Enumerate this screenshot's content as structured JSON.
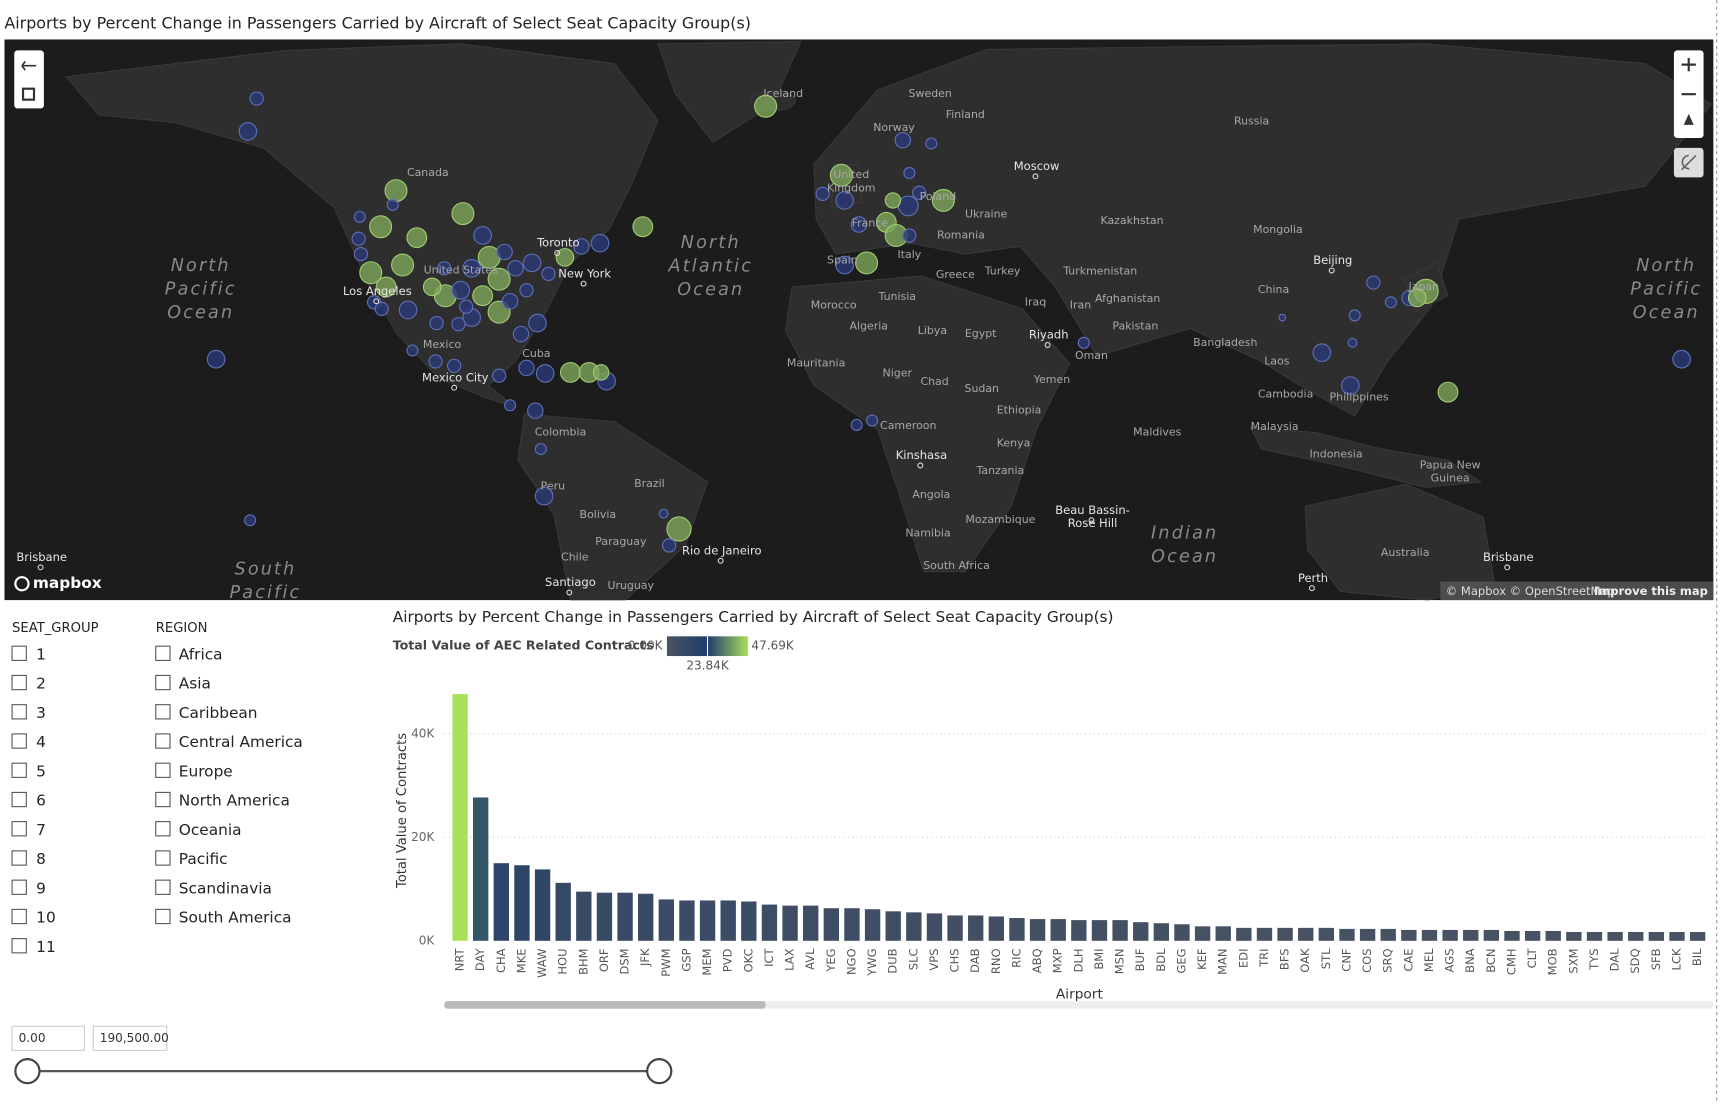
{
  "map": {
    "title": "Airports by Percent Change in Passengers Carried by Aircraft of Select Seat Capacity Group(s)",
    "labels": [
      [
        "Canada"
      ],
      [
        "Iceland"
      ],
      [
        "Sweden"
      ],
      [
        "Finland"
      ],
      [
        "Norway"
      ],
      [
        "Russia"
      ],
      [
        "Moscow"
      ],
      [
        "United",
        "Kingdom"
      ],
      [
        "Poland"
      ],
      [
        "Ukraine"
      ],
      [
        "France"
      ],
      [
        "Romania"
      ],
      [
        "Kazakhstan"
      ],
      [
        "Mongolia"
      ],
      [
        "Toronto"
      ],
      [
        "New York"
      ],
      [
        "United States"
      ],
      [
        "Los Angeles"
      ],
      [
        "Spain"
      ],
      [
        "Italy"
      ],
      [
        "Turkey"
      ],
      [
        "Turkmenistan"
      ],
      [
        "Beijing"
      ],
      [
        "Greece"
      ],
      [
        "Iraq"
      ],
      [
        "Iran"
      ],
      [
        "Afghanistan"
      ],
      [
        "China"
      ],
      [
        "Japan"
      ],
      [
        "Tunisia"
      ],
      [
        "Morocco"
      ],
      [
        "Algeria"
      ],
      [
        "Libya"
      ],
      [
        "Egypt"
      ],
      [
        "Pakistan"
      ],
      [
        "Riyadh"
      ],
      [
        "Bangladesh"
      ],
      [
        "Mexico"
      ],
      [
        "Cuba"
      ],
      [
        "Oman"
      ],
      [
        "Laos"
      ],
      [
        "Mauritania"
      ],
      [
        "Niger"
      ],
      [
        "Chad"
      ],
      [
        "Sudan"
      ],
      [
        "Yemen"
      ],
      [
        "Mexico City"
      ],
      [
        "Philippines"
      ],
      [
        "Cambodia"
      ],
      [
        "Ethiopia"
      ],
      [
        "Malaysia"
      ],
      [
        "Maldives"
      ],
      [
        "Cameroon"
      ],
      [
        "Colombia"
      ],
      [
        "Kinshasa"
      ],
      [
        "Kenya"
      ],
      [
        "Indonesia"
      ],
      [
        "Papua New",
        "Guinea"
      ],
      [
        "Tanzania"
      ],
      [
        "Brazil"
      ],
      [
        "Peru"
      ],
      [
        "Angola"
      ],
      [
        "Bolivia"
      ],
      [
        "Beau Bassin-",
        "Rose Hill"
      ],
      [
        "Mozambique"
      ],
      [
        "Namibia"
      ],
      [
        "Paraguay"
      ],
      [
        "Rio de Janeiro"
      ],
      [
        "Chile"
      ],
      [
        "South Africa"
      ],
      [
        "Australia"
      ],
      [
        "Brisbane"
      ],
      [
        "Brisbane"
      ],
      [
        "Perth"
      ],
      [
        "Santiago"
      ],
      [
        "Uruguay"
      ],
      [
        "North",
        "Pacific",
        "Ocean"
      ],
      [
        "North",
        "Atlantic",
        "Ocean"
      ],
      [
        "Indian",
        "Ocean"
      ],
      [
        "South",
        "Pacific"
      ],
      [
        "North",
        "Pacific",
        "Ocean"
      ]
    ],
    "logo": "mapbox",
    "attribution": "© Mapbox © OpenStreetMap",
    "improve": "Improve this map"
  },
  "slicers": {
    "seat_group": {
      "title": "SEAT_GROUP",
      "items": [
        "1",
        "2",
        "3",
        "4",
        "5",
        "6",
        "7",
        "8",
        "9",
        "10",
        "11"
      ]
    },
    "region": {
      "title": "REGION",
      "items": [
        "Africa",
        "Asia",
        "Caribbean",
        "Central America",
        "Europe",
        "North America",
        "Oceania",
        "Pacific",
        "Scandinavia",
        "South America"
      ]
    }
  },
  "range": {
    "min": "0.00",
    "max": "190,500.00"
  },
  "chart_data": {
    "type": "bar",
    "title": "Airports by Percent Change in Passengers Carried by Aircraft of Select Seat Capacity Group(s)",
    "x_label": "Airport",
    "y_label": "Total Value of Contracts",
    "categories": [
      "NRT",
      "DAY",
      "CHA",
      "MKE",
      "WAW",
      "HOU",
      "BHM",
      "ORF",
      "DSM",
      "JFK",
      "PWM",
      "GSP",
      "MEM",
      "PVD",
      "OKC",
      "ICT",
      "LAX",
      "AVL",
      "YEG",
      "NGO",
      "YWG",
      "DUB",
      "SLC",
      "VPS",
      "CHS",
      "DAB",
      "RNO",
      "RIC",
      "ABQ",
      "MXP",
      "DLH",
      "BMI",
      "MSN",
      "BUF",
      "BDL",
      "GEG",
      "KEF",
      "MAN",
      "EDI",
      "TRI",
      "BFS",
      "OAK",
      "STL",
      "CNF",
      "COS",
      "SRQ",
      "CAE",
      "MEL",
      "AGS",
      "BNA",
      "BCN",
      "CMH",
      "CLT",
      "MOB",
      "SXM",
      "TYS",
      "DAL",
      "SDQ",
      "SFB",
      "LCK",
      "BIL"
    ],
    "values": [
      47.69,
      27.7,
      15.0,
      14.6,
      13.8,
      11.2,
      9.5,
      9.3,
      9.3,
      9.1,
      8.0,
      7.8,
      7.8,
      7.8,
      7.6,
      7.0,
      6.8,
      6.8,
      6.3,
      6.3,
      6.1,
      5.7,
      5.5,
      5.3,
      4.9,
      4.9,
      4.7,
      4.4,
      4.2,
      4.2,
      4.0,
      4.0,
      4.0,
      3.6,
      3.4,
      3.2,
      2.8,
      2.8,
      2.5,
      2.5,
      2.5,
      2.5,
      2.5,
      2.3,
      2.3,
      2.3,
      2.1,
      2.1,
      2.1,
      2.1,
      2.1,
      1.9,
      1.9,
      1.9,
      1.7,
      1.7,
      1.7,
      1.7,
      1.7,
      1.7,
      1.7
    ],
    "ylim": [
      0,
      48
    ],
    "yticks": [
      {
        "value": 0,
        "label": "0K"
      },
      {
        "value": 20,
        "label": "20K"
      },
      {
        "value": 40,
        "label": "40K"
      }
    ],
    "grid": true,
    "color_scale": {
      "title": "Total Value of AEC Related Contracts",
      "min": {
        "value": 0,
        "label": "0.00K"
      },
      "mid": {
        "value": 23.84,
        "label": "23.84K"
      },
      "max": {
        "value": 47.69,
        "label": "47.69K"
      },
      "colors": [
        "#4b5461",
        "#1d3b6c",
        "#a9e05a"
      ]
    }
  }
}
